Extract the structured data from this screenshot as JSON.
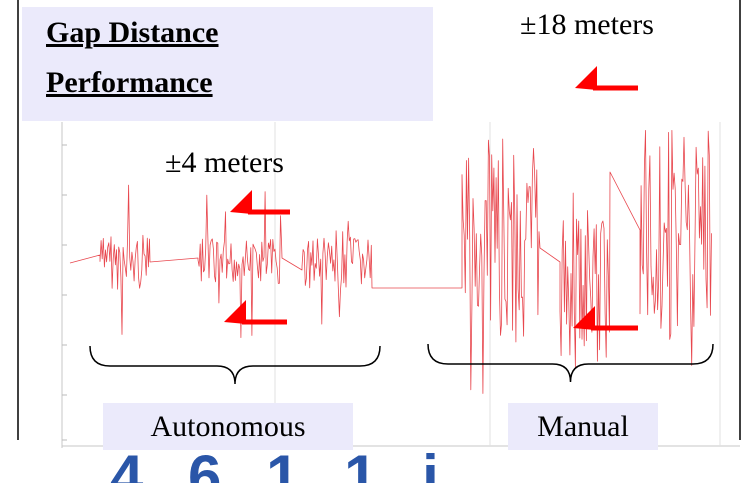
{
  "title": {
    "line1": "Gap Distance",
    "line2": "Performance"
  },
  "annotations": {
    "autonomous_range": "±4 meters",
    "manual_range": "±18 meters"
  },
  "captions": {
    "left": "Autonomous",
    "right": "Manual"
  },
  "bottom_text": "4 6 1 1 i",
  "colors": {
    "signal": "#e8474e",
    "arrow": "#ff0000",
    "label_bg": "#ebeafb",
    "bottom_text": "#2a56a8"
  },
  "chart_data": {
    "type": "line",
    "title": "Gap Distance Performance",
    "xlabel": "",
    "ylabel": "",
    "grid": true,
    "series": [
      {
        "values": []
      }
    ],
    "segments": [
      {
        "mode": "Autonomous",
        "gap_range_m": 4
      },
      {
        "mode": "Manual",
        "gap_range_m": 18
      }
    ]
  }
}
